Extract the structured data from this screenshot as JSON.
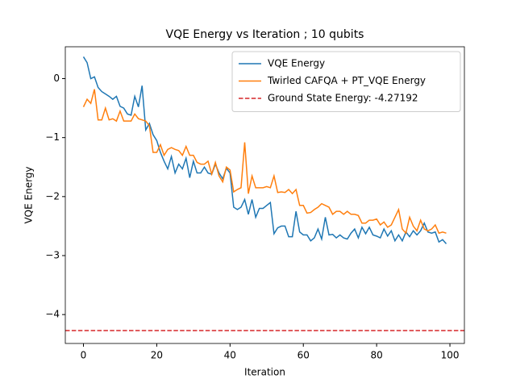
{
  "chart_data": {
    "type": "line",
    "title": "VQE Energy vs Iteration ; 10 qubits",
    "xlabel": "Iteration",
    "ylabel": "VQE Energy",
    "x": [
      0,
      1,
      2,
      3,
      4,
      5,
      6,
      7,
      8,
      9,
      10,
      11,
      12,
      13,
      14,
      15,
      16,
      17,
      18,
      19,
      20,
      21,
      22,
      23,
      24,
      25,
      26,
      27,
      28,
      29,
      30,
      31,
      32,
      33,
      34,
      35,
      36,
      37,
      38,
      39,
      40,
      41,
      42,
      43,
      44,
      45,
      46,
      47,
      48,
      49,
      50,
      51,
      52,
      53,
      54,
      55,
      56,
      57,
      58,
      59,
      60,
      61,
      62,
      63,
      64,
      65,
      66,
      67,
      68,
      69,
      70,
      71,
      72,
      73,
      74,
      75,
      76,
      77,
      78,
      79,
      80,
      81,
      82,
      83,
      84,
      85,
      86,
      87,
      88,
      89,
      90,
      91,
      92,
      93,
      94,
      95,
      96,
      97,
      98,
      99
    ],
    "series": [
      {
        "name": "VQE Energy",
        "color": "#1f77b4",
        "values": [
          0.37,
          0.27,
          0.0,
          0.03,
          -0.15,
          -0.22,
          -0.26,
          -0.3,
          -0.35,
          -0.3,
          -0.47,
          -0.5,
          -0.6,
          -0.62,
          -0.3,
          -0.48,
          -0.12,
          -0.87,
          -0.76,
          -0.95,
          -1.05,
          -1.25,
          -1.4,
          -1.53,
          -1.32,
          -1.6,
          -1.45,
          -1.53,
          -1.35,
          -1.68,
          -1.4,
          -1.6,
          -1.6,
          -1.5,
          -1.6,
          -1.62,
          -1.45,
          -1.6,
          -1.7,
          -1.52,
          -1.6,
          -2.18,
          -2.22,
          -2.18,
          -2.05,
          -2.3,
          -2.05,
          -2.35,
          -2.2,
          -2.2,
          -2.15,
          -2.1,
          -2.63,
          -2.53,
          -2.5,
          -2.5,
          -2.68,
          -2.68,
          -2.25,
          -2.6,
          -2.65,
          -2.65,
          -2.75,
          -2.7,
          -2.55,
          -2.72,
          -2.35,
          -2.65,
          -2.64,
          -2.7,
          -2.65,
          -2.7,
          -2.72,
          -2.62,
          -2.55,
          -2.7,
          -2.52,
          -2.63,
          -2.52,
          -2.65,
          -2.67,
          -2.7,
          -2.55,
          -2.67,
          -2.58,
          -2.75,
          -2.65,
          -2.75,
          -2.6,
          -2.68,
          -2.58,
          -2.65,
          -2.58,
          -2.45,
          -2.6,
          -2.62,
          -2.6,
          -2.77,
          -2.73,
          -2.8
        ]
      },
      {
        "name": "Twirled CAFQA + PT_VQE Energy",
        "color": "#ff7f0e",
        "values": [
          -0.48,
          -0.35,
          -0.42,
          -0.18,
          -0.7,
          -0.7,
          -0.5,
          -0.7,
          -0.68,
          -0.72,
          -0.55,
          -0.72,
          -0.72,
          -0.72,
          -0.6,
          -0.68,
          -0.7,
          -0.72,
          -0.8,
          -1.25,
          -1.25,
          -1.12,
          -1.3,
          -1.2,
          -1.17,
          -1.2,
          -1.22,
          -1.3,
          -1.15,
          -1.3,
          -1.3,
          -1.42,
          -1.45,
          -1.45,
          -1.4,
          -1.62,
          -1.42,
          -1.65,
          -1.75,
          -1.5,
          -1.55,
          -1.92,
          -1.88,
          -1.85,
          -1.08,
          -1.95,
          -1.65,
          -1.85,
          -1.85,
          -1.85,
          -1.83,
          -1.85,
          -1.65,
          -1.93,
          -1.92,
          -1.93,
          -1.88,
          -1.95,
          -1.88,
          -2.15,
          -2.15,
          -2.28,
          -2.27,
          -2.22,
          -2.18,
          -2.12,
          -2.15,
          -2.18,
          -2.3,
          -2.25,
          -2.25,
          -2.3,
          -2.25,
          -2.3,
          -2.3,
          -2.32,
          -2.45,
          -2.45,
          -2.4,
          -2.4,
          -2.38,
          -2.48,
          -2.43,
          -2.52,
          -2.48,
          -2.35,
          -2.22,
          -2.55,
          -2.62,
          -2.35,
          -2.5,
          -2.58,
          -2.4,
          -2.55,
          -2.58,
          -2.55,
          -2.48,
          -2.62,
          -2.6,
          -2.62
        ]
      }
    ],
    "hlines": [
      {
        "name": "Ground State Energy: -4.27192",
        "color": "#d62728",
        "y": -4.27192,
        "style": "dashed"
      }
    ],
    "xlim": [
      -4.95,
      103.95
    ],
    "ylim": [
      -4.49,
      0.54
    ],
    "xticks": [
      0,
      20,
      40,
      60,
      80,
      100
    ],
    "yticks": [
      {
        "value": -4,
        "label": "−4"
      },
      {
        "value": -3,
        "label": "−3"
      },
      {
        "value": -2,
        "label": "−2"
      },
      {
        "value": -1,
        "label": "−1"
      },
      0
    ],
    "grid": false,
    "legend": "upper right"
  }
}
